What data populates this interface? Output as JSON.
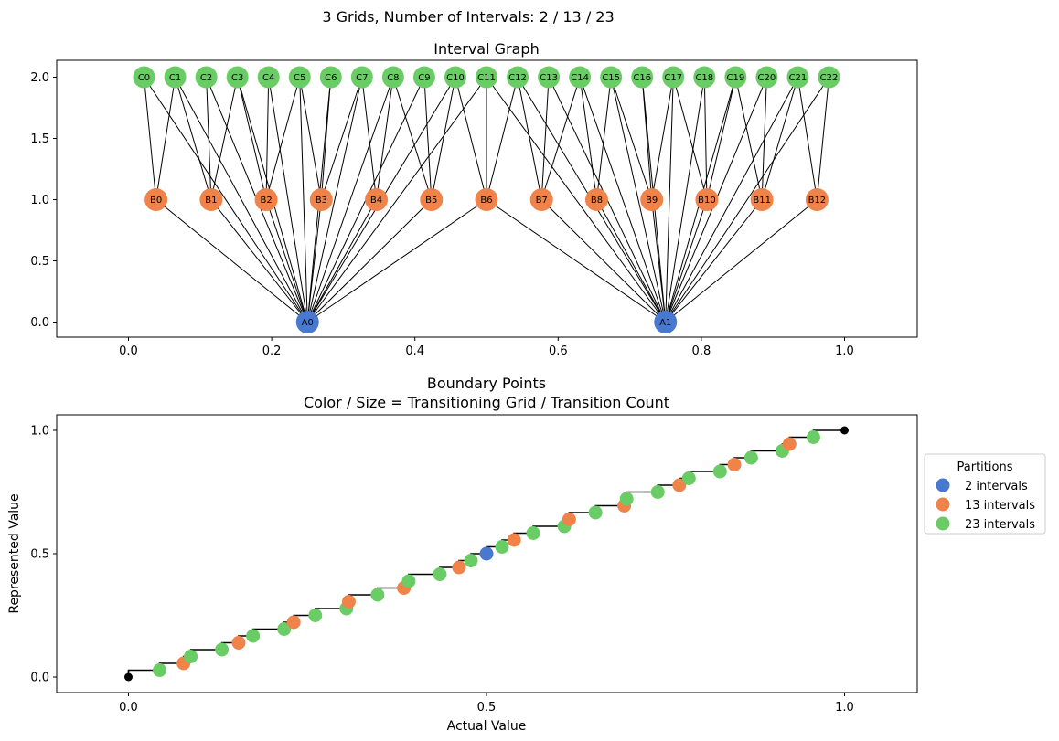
{
  "figure": {
    "suptitle": "3 Grids, Number of Intervals: 2 / 13 / 23"
  },
  "colors": {
    "grid2": "#4878CF",
    "grid13": "#F0834A",
    "grid23": "#6ACC65",
    "edge": "#000000",
    "axis": "#000000",
    "step": "#000000"
  },
  "chart_data": [
    {
      "type": "scatter",
      "title": "Interval Graph",
      "xlabel": "",
      "ylabel": "",
      "xlim": [
        -0.1,
        1.1
      ],
      "ylim": [
        -0.1,
        2.1
      ],
      "xticks": [
        "0.0",
        "0.2",
        "0.4",
        "0.6",
        "0.8",
        "1.0"
      ],
      "yticks": [
        "0.0",
        "0.5",
        "1.0",
        "1.5",
        "2.0"
      ],
      "grid": false,
      "levels": [
        {
          "y": 0,
          "color_key": "grid2",
          "prefix": "A",
          "count": 2
        },
        {
          "y": 1,
          "color_key": "grid13",
          "prefix": "B",
          "count": 13
        },
        {
          "y": 2,
          "color_key": "grid23",
          "prefix": "C",
          "count": 23
        }
      ],
      "node_labels": {
        "A": [
          "A0",
          "A1"
        ],
        "B": [
          "B0",
          "B1",
          "B2",
          "B3",
          "B4",
          "B5",
          "B6",
          "B7",
          "B8",
          "B9",
          "B10",
          "B11",
          "B12"
        ],
        "C": [
          "C0",
          "C1",
          "C2",
          "C3",
          "C4",
          "C5",
          "C6",
          "C7",
          "C8",
          "C9",
          "C10",
          "C11",
          "C12",
          "C13",
          "C14",
          "C15",
          "C16",
          "C17",
          "C18",
          "C19",
          "C20",
          "C21",
          "C22"
        ]
      },
      "edges": "nodes connected where their intervals overlap"
    },
    {
      "type": "scatter",
      "title": "Boundary Points\nColor / Size = Transitioning Grid / Transition Count",
      "xlabel": "Actual Value",
      "ylabel": "Represented Value",
      "xlim": [
        -0.1,
        1.1
      ],
      "ylim": [
        -0.05,
        1.05
      ],
      "xticks": [
        "0.0",
        "0.5",
        "1.0"
      ],
      "yticks": [
        "0.0",
        "0.5",
        "1.0"
      ],
      "grid": false,
      "legend": {
        "title": "Partitions",
        "placement": "right-outside",
        "entries": [
          {
            "label": "2 intervals",
            "color_key": "grid2"
          },
          {
            "label": "13 intervals",
            "color_key": "grid13"
          },
          {
            "label": "23 intervals",
            "color_key": "grid23"
          }
        ]
      },
      "series": [
        {
          "name": "2 intervals",
          "color_key": "grid2",
          "intervals": 2
        },
        {
          "name": "13 intervals",
          "color_key": "grid13",
          "intervals": 13
        },
        {
          "name": "23 intervals",
          "color_key": "grid23",
          "intervals": 23
        }
      ],
      "endpoints": [
        [
          0,
          0
        ],
        [
          1,
          1
        ]
      ],
      "step_line": "staircase through all boundary points"
    }
  ]
}
